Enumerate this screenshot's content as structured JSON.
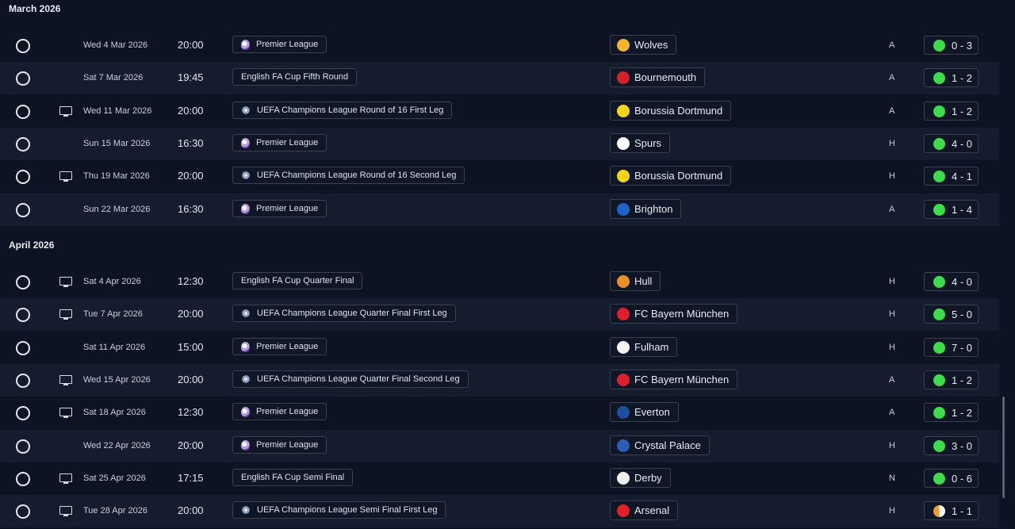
{
  "colors": {
    "win": "#3ddc4a",
    "draw": "#f39a2b",
    "row_alt": "#141c2d",
    "background": "#0d1322"
  },
  "months": [
    {
      "title": "March 2026",
      "fixtures": [
        {
          "date": "Wed 4 Mar 2026",
          "time": "20:00",
          "competition": "Premier League",
          "comp_icon": "premier-league-logo",
          "team": "Wolves",
          "crest_color": "#f2b52c",
          "venue": "A",
          "result": "0 - 3",
          "outcome": "win",
          "tv": false
        },
        {
          "date": "Sat 7 Mar 2026",
          "time": "19:45",
          "competition": "English FA Cup Fifth Round",
          "comp_icon": "",
          "team": "Bournemouth",
          "crest_color": "#d4202a",
          "venue": "A",
          "result": "1 - 2",
          "outcome": "win",
          "tv": false
        },
        {
          "date": "Wed 11 Mar 2026",
          "time": "20:00",
          "competition": "UEFA Champions League Round of 16  First Leg",
          "comp_icon": "champions-league-logo",
          "team": "Borussia Dortmund",
          "crest_color": "#f5d31a",
          "venue": "A",
          "result": "1 - 2",
          "outcome": "win",
          "tv": true
        },
        {
          "date": "Sun 15 Mar 2026",
          "time": "16:30",
          "competition": "Premier League",
          "comp_icon": "premier-league-logo",
          "team": "Spurs",
          "crest_color": "#ffffff",
          "venue": "H",
          "result": "4 - 0",
          "outcome": "win",
          "tv": false
        },
        {
          "date": "Thu 19 Mar 2026",
          "time": "20:00",
          "competition": "UEFA Champions League Round of 16  Second Leg",
          "comp_icon": "champions-league-logo",
          "team": "Borussia Dortmund",
          "crest_color": "#f5d31a",
          "venue": "H",
          "result": "4 - 1",
          "outcome": "win",
          "tv": true
        },
        {
          "date": "Sun 22 Mar 2026",
          "time": "16:30",
          "competition": "Premier League",
          "comp_icon": "premier-league-logo",
          "team": "Brighton",
          "crest_color": "#1e64c8",
          "venue": "A",
          "result": "1 - 4",
          "outcome": "win",
          "tv": false
        }
      ]
    },
    {
      "title": "April 2026",
      "fixtures": [
        {
          "date": "Sat 4 Apr 2026",
          "time": "12:30",
          "competition": "English FA Cup Quarter Final",
          "comp_icon": "",
          "team": "Hull",
          "crest_color": "#e8902a",
          "venue": "H",
          "result": "4 - 0",
          "outcome": "win",
          "tv": true
        },
        {
          "date": "Tue 7 Apr 2026",
          "time": "20:00",
          "competition": "UEFA Champions League Quarter Final First Leg",
          "comp_icon": "champions-league-logo",
          "team": "FC Bayern München",
          "crest_color": "#dc1f2e",
          "venue": "H",
          "result": "5 - 0",
          "outcome": "win",
          "tv": true
        },
        {
          "date": "Sat 11 Apr 2026",
          "time": "15:00",
          "competition": "Premier League",
          "comp_icon": "premier-league-logo",
          "team": "Fulham",
          "crest_color": "#f5f5f5",
          "venue": "H",
          "result": "7 - 0",
          "outcome": "win",
          "tv": false
        },
        {
          "date": "Wed 15 Apr 2026",
          "time": "20:00",
          "competition": "UEFA Champions League Quarter Final Second Leg",
          "comp_icon": "champions-league-logo",
          "team": "FC Bayern München",
          "crest_color": "#dc1f2e",
          "venue": "A",
          "result": "1 - 2",
          "outcome": "win",
          "tv": true
        },
        {
          "date": "Sat 18 Apr 2026",
          "time": "12:30",
          "competition": "Premier League",
          "comp_icon": "premier-league-logo",
          "team": "Everton",
          "crest_color": "#1a4fa0",
          "venue": "A",
          "result": "1 - 2",
          "outcome": "win",
          "tv": true
        },
        {
          "date": "Wed 22 Apr 2026",
          "time": "20:00",
          "competition": "Premier League",
          "comp_icon": "premier-league-logo",
          "team": "Crystal Palace",
          "crest_color": "#2b5db8",
          "venue": "H",
          "result": "3 - 0",
          "outcome": "win",
          "tv": false
        },
        {
          "date": "Sat 25 Apr 2026",
          "time": "17:15",
          "competition": "English FA Cup Semi Final",
          "comp_icon": "",
          "team": "Derby",
          "crest_color": "#f0f0f0",
          "venue": "N",
          "result": "0 - 6",
          "outcome": "win",
          "tv": true
        },
        {
          "date": "Tue 28 Apr 2026",
          "time": "20:00",
          "competition": "UEFA Champions League Semi Final First Leg",
          "comp_icon": "champions-league-logo",
          "team": "Arsenal",
          "crest_color": "#e32028",
          "venue": "H",
          "result": "1 - 1",
          "outcome": "draw",
          "tv": true
        }
      ]
    }
  ]
}
